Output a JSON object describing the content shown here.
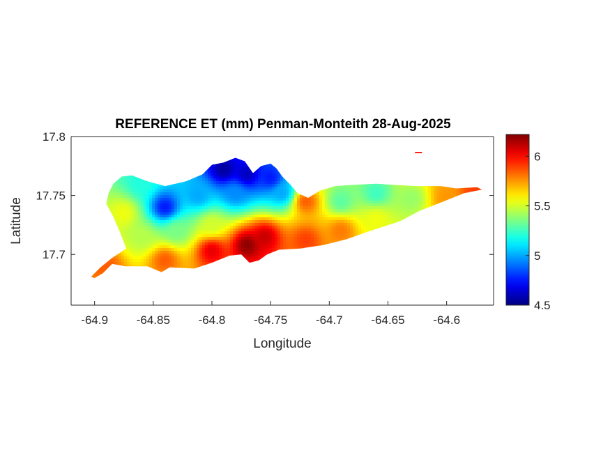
{
  "chart_data": {
    "type": "heatmap",
    "title": "REFERENCE ET (mm) Penman-Monteith 28-Aug-2025",
    "xlabel": "Longitude",
    "ylabel": "Latitude",
    "xlim": [
      -64.92,
      -64.56
    ],
    "ylim": [
      17.657,
      17.8
    ],
    "xticks": [
      -64.9,
      -64.85,
      -64.8,
      -64.75,
      -64.7,
      -64.65,
      -64.6
    ],
    "xtick_labels": [
      "-64.9",
      "-64.85",
      "-64.8",
      "-64.75",
      "-64.7",
      "-64.65",
      "-64.6"
    ],
    "yticks": [
      17.7,
      17.75,
      17.8
    ],
    "ytick_labels": [
      "17.7",
      "17.75",
      "17.8"
    ],
    "colorbar": {
      "colormap": "jet",
      "clim": [
        4.5,
        6.22
      ],
      "ticks": [
        4.5,
        5,
        5.5,
        6
      ],
      "tick_labels": [
        "4.5",
        "5",
        "5.5",
        "6"
      ]
    },
    "outline": [
      [
        -64.9,
        17.68
      ],
      [
        -64.893,
        17.684
      ],
      [
        -64.885,
        17.692
      ],
      [
        -64.874,
        17.69
      ],
      [
        -64.855,
        17.69
      ],
      [
        -64.843,
        17.685
      ],
      [
        -64.836,
        17.689
      ],
      [
        -64.815,
        17.688
      ],
      [
        -64.8,
        17.693
      ],
      [
        -64.785,
        17.699
      ],
      [
        -64.775,
        17.7
      ],
      [
        -64.768,
        17.693
      ],
      [
        -64.76,
        17.695
      ],
      [
        -64.753,
        17.7
      ],
      [
        -64.743,
        17.704
      ],
      [
        -64.725,
        17.705
      ],
      [
        -64.705,
        17.708
      ],
      [
        -64.685,
        17.713
      ],
      [
        -64.665,
        17.72
      ],
      [
        -64.64,
        17.728
      ],
      [
        -64.623,
        17.737
      ],
      [
        -64.605,
        17.744
      ],
      [
        -64.585,
        17.752
      ],
      [
        -64.57,
        17.755
      ],
      [
        -64.574,
        17.757
      ],
      [
        -64.592,
        17.756
      ],
      [
        -64.605,
        17.758
      ],
      [
        -64.625,
        17.758
      ],
      [
        -64.645,
        17.759
      ],
      [
        -64.66,
        17.76
      ],
      [
        -64.68,
        17.759
      ],
      [
        -64.695,
        17.758
      ],
      [
        -64.708,
        17.754
      ],
      [
        -64.718,
        17.748
      ],
      [
        -64.727,
        17.752
      ],
      [
        -64.733,
        17.759
      ],
      [
        -64.74,
        17.766
      ],
      [
        -64.745,
        17.773
      ],
      [
        -64.75,
        17.777
      ],
      [
        -64.758,
        17.775
      ],
      [
        -64.765,
        17.769
      ],
      [
        -64.772,
        17.779
      ],
      [
        -64.78,
        17.782
      ],
      [
        -64.79,
        17.778
      ],
      [
        -64.8,
        17.776
      ],
      [
        -64.808,
        17.768
      ],
      [
        -64.822,
        17.762
      ],
      [
        -64.84,
        17.758
      ],
      [
        -64.855,
        17.762
      ],
      [
        -64.868,
        17.767
      ],
      [
        -64.877,
        17.766
      ],
      [
        -64.884,
        17.76
      ],
      [
        -64.888,
        17.752
      ],
      [
        -64.89,
        17.743
      ],
      [
        -64.884,
        17.732
      ],
      [
        -64.878,
        17.718
      ],
      [
        -64.873,
        17.705
      ],
      [
        -64.885,
        17.697
      ],
      [
        -64.895,
        17.689
      ],
      [
        -64.903,
        17.681
      ]
    ],
    "islet": [
      [
        -64.627,
        17.787
      ],
      [
        -64.621,
        17.787
      ],
      [
        -64.621,
        17.786
      ],
      [
        -64.627,
        17.786
      ]
    ],
    "value_anchors": [
      {
        "lon": -64.79,
        "lat": 17.772,
        "et": 4.55
      },
      {
        "lon": -64.77,
        "lat": 17.768,
        "et": 4.6
      },
      {
        "lon": -64.75,
        "lat": 17.765,
        "et": 4.75
      },
      {
        "lon": -64.84,
        "lat": 17.74,
        "et": 4.75
      },
      {
        "lon": -64.812,
        "lat": 17.75,
        "et": 5.0
      },
      {
        "lon": -64.74,
        "lat": 17.752,
        "et": 5.0
      },
      {
        "lon": -64.78,
        "lat": 17.752,
        "et": 4.95
      },
      {
        "lon": -64.86,
        "lat": 17.76,
        "et": 5.2
      },
      {
        "lon": -64.69,
        "lat": 17.745,
        "et": 5.3
      },
      {
        "lon": -64.66,
        "lat": 17.752,
        "et": 5.25
      },
      {
        "lon": -64.63,
        "lat": 17.748,
        "et": 5.4
      },
      {
        "lon": -64.72,
        "lat": 17.745,
        "et": 5.85
      },
      {
        "lon": -64.875,
        "lat": 17.735,
        "et": 5.55
      },
      {
        "lon": -64.86,
        "lat": 17.715,
        "et": 5.45
      },
      {
        "lon": -64.83,
        "lat": 17.72,
        "et": 5.35
      },
      {
        "lon": -64.8,
        "lat": 17.725,
        "et": 5.5
      },
      {
        "lon": -64.89,
        "lat": 17.69,
        "et": 5.85
      },
      {
        "lon": -64.84,
        "lat": 17.695,
        "et": 5.85
      },
      {
        "lon": -64.8,
        "lat": 17.703,
        "et": 6.05
      },
      {
        "lon": -64.77,
        "lat": 17.708,
        "et": 6.2
      },
      {
        "lon": -64.755,
        "lat": 17.715,
        "et": 6.1
      },
      {
        "lon": -64.72,
        "lat": 17.712,
        "et": 5.9
      },
      {
        "lon": -64.69,
        "lat": 17.72,
        "et": 5.8
      },
      {
        "lon": -64.66,
        "lat": 17.73,
        "et": 5.55
      },
      {
        "lon": -64.6,
        "lat": 17.748,
        "et": 5.75
      },
      {
        "lon": -64.575,
        "lat": 17.754,
        "et": 5.9
      },
      {
        "lon": -64.624,
        "lat": 17.786,
        "et": 6.0
      }
    ]
  }
}
